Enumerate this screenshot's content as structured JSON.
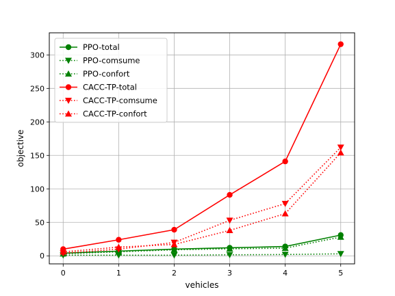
{
  "chart_data": {
    "type": "line",
    "xlabel": "vehicles",
    "ylabel": "objective",
    "x": [
      0,
      1,
      2,
      3,
      4,
      5
    ],
    "xlim": [
      -0.25,
      5.25
    ],
    "ylim": [
      -12,
      333
    ],
    "xticks": [
      "0",
      "1",
      "2",
      "3",
      "4",
      "5"
    ],
    "yticks": [
      "0",
      "50",
      "100",
      "150",
      "200",
      "250",
      "300"
    ],
    "grid": true,
    "legend_position": "top-left",
    "series": [
      {
        "name": "PPO-total",
        "color": "#008000",
        "linestyle": "solid",
        "marker": "circle",
        "values": [
          4,
          7,
          10,
          12,
          14,
          31
        ]
      },
      {
        "name": "PPO-comsume",
        "color": "#008000",
        "linestyle": "dotted",
        "marker": "triangle-down",
        "values": [
          1,
          1,
          1,
          1.5,
          2,
          3
        ]
      },
      {
        "name": "PPO-confort",
        "color": "#008000",
        "linestyle": "dotted",
        "marker": "triangle-up",
        "values": [
          3,
          6,
          9,
          10.5,
          11.5,
          28
        ]
      },
      {
        "name": "CACC-TP-total",
        "color": "#ff0000",
        "linestyle": "solid",
        "marker": "circle",
        "values": [
          10,
          24,
          39,
          91,
          141,
          316
        ]
      },
      {
        "name": "CACC-TP-comsume",
        "color": "#ff0000",
        "linestyle": "dotted",
        "marker": "triangle-down",
        "values": [
          4,
          10,
          20,
          53,
          78,
          162
        ]
      },
      {
        "name": "CACC-TP-confort",
        "color": "#ff0000",
        "linestyle": "dotted",
        "marker": "triangle-up",
        "values": [
          6,
          13,
          17,
          38,
          63,
          154
        ]
      }
    ]
  }
}
